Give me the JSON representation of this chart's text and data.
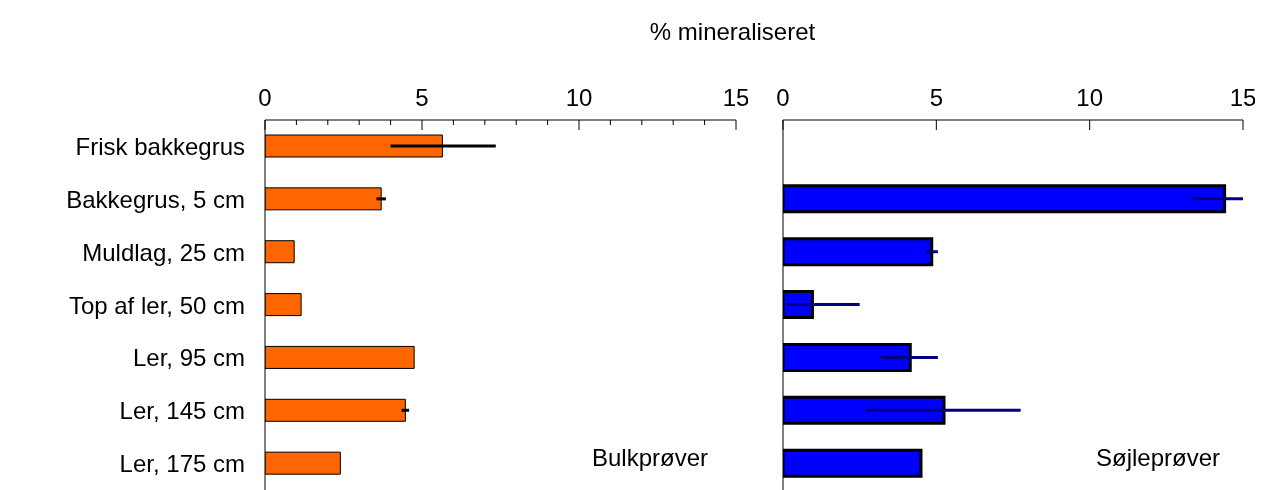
{
  "chart_data": [
    {
      "type": "bar",
      "orientation": "horizontal",
      "xlabel": "% mineraliseret",
      "categories": [
        "Frisk bakkegrus",
        "Bakkegrus, 5 cm",
        "Muldlag, 25 cm",
        "Top af ler, 50 cm",
        "Ler, 95 cm",
        "Ler, 145 cm",
        "Ler, 175 cm"
      ],
      "series": [
        {
          "color": "#ff6600",
          "values": [
            5.65,
            3.7,
            0.93,
            1.15,
            4.75,
            4.47,
            2.4
          ],
          "errors": [
            [
              4.0,
              7.35
            ],
            0.15,
            null,
            null,
            null,
            0.12,
            null
          ]
        }
      ],
      "xlim": [
        0,
        15
      ],
      "xticks": [
        0,
        {
          "value": 1,
          "label": null
        },
        {
          "value": 2,
          "label": null
        },
        {
          "value": 3,
          "label": null
        },
        {
          "value": 4,
          "label": null
        },
        5,
        {
          "value": 6,
          "label": null
        },
        {
          "value": 7,
          "label": null
        },
        {
          "value": 8,
          "label": null
        },
        {
          "value": 9,
          "label": null
        },
        10,
        {
          "value": 11,
          "label": null
        },
        {
          "value": 12,
          "label": null
        },
        {
          "value": 13,
          "label": null
        },
        {
          "value": 14,
          "label": null
        },
        15
      ],
      "annotations": [
        "Bulkprøver"
      ]
    },
    {
      "type": "bar",
      "orientation": "horizontal",
      "categories": [
        null,
        null,
        null,
        null,
        null,
        null,
        null
      ],
      "series": [
        {
          "color": "#0000ff",
          "values": [
            null,
            14.4,
            4.85,
            0.96,
            4.15,
            5.25,
            4.5
          ],
          "errors": [
            null,
            [
              13.35,
              15.0
            ],
            0.2,
            [
              0.1,
              2.5
            ],
            [
              3.2,
              5.05
            ],
            [
              2.7,
              7.75
            ],
            null
          ]
        }
      ],
      "xlim": [
        0,
        15
      ],
      "xticks": [
        0,
        5,
        10,
        15
      ],
      "tick_labels": "x",
      "annotations": [
        "Søjleprøver"
      ]
    }
  ]
}
